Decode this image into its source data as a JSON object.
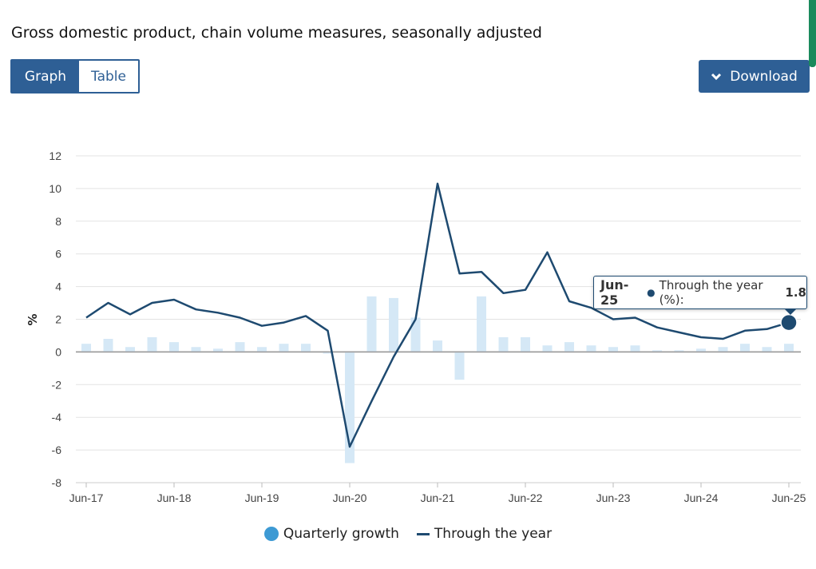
{
  "header": {
    "title": "Gross domestic product, chain volume measures, seasonally adjusted",
    "tab_graph": "Graph",
    "tab_table": "Table",
    "download_label": "Download"
  },
  "tooltip": {
    "date": "Jun-25",
    "series": "Through the year (%): ",
    "value": "1.8"
  },
  "legend": {
    "quarterly": "Quarterly growth",
    "through_year": "Through the year"
  },
  "colors": {
    "accent": "#2e5f95",
    "line": "#1e4a70",
    "bar": "#d5e8f6",
    "legend_dot": "#3d9ad4"
  },
  "chart_data": {
    "type": "bar",
    "ylabel": "%",
    "ylim": [
      -8,
      12
    ],
    "yticks": [
      12,
      10,
      8,
      6,
      4,
      2,
      0,
      -2,
      -4,
      -6,
      -8
    ],
    "xtick_labels": [
      "Jun-17",
      "Jun-18",
      "Jun-19",
      "Jun-20",
      "Jun-21",
      "Jun-22",
      "Jun-23",
      "Jun-24",
      "Jun-25"
    ],
    "categories": [
      "Jun-17",
      "Sep-17",
      "Dec-17",
      "Mar-18",
      "Jun-18",
      "Sep-18",
      "Dec-18",
      "Mar-19",
      "Jun-19",
      "Sep-19",
      "Dec-19",
      "Mar-20",
      "Jun-20",
      "Sep-20",
      "Dec-20",
      "Mar-21",
      "Jun-21",
      "Sep-21",
      "Dec-21",
      "Mar-22",
      "Jun-22",
      "Sep-22",
      "Dec-22",
      "Mar-23",
      "Jun-23",
      "Sep-23",
      "Dec-23",
      "Mar-24",
      "Jun-24",
      "Sep-24",
      "Dec-24",
      "Mar-25",
      "Jun-25"
    ],
    "series": [
      {
        "name": "Quarterly growth",
        "values": [
          0.5,
          0.8,
          0.3,
          0.9,
          0.6,
          0.3,
          0.2,
          0.6,
          0.3,
          0.5,
          0.5,
          -0.1,
          -6.8,
          3.4,
          3.3,
          2.1,
          0.7,
          -1.7,
          3.4,
          0.9,
          0.9,
          0.4,
          0.6,
          0.4,
          0.3,
          0.4,
          0.1,
          0.1,
          0.2,
          0.3,
          0.5,
          0.3,
          0.5
        ]
      },
      {
        "name": "Through the year",
        "values": [
          2.1,
          3.0,
          2.3,
          3.0,
          3.2,
          2.6,
          2.4,
          2.1,
          1.6,
          1.8,
          2.2,
          1.3,
          -5.8,
          -3.0,
          -0.3,
          2.0,
          10.3,
          4.8,
          4.9,
          3.6,
          3.8,
          6.1,
          3.1,
          2.7,
          2.0,
          2.1,
          1.5,
          1.2,
          0.9,
          0.8,
          1.3,
          1.4,
          1.8
        ]
      }
    ],
    "grid": true,
    "legend_position": "bottom"
  }
}
